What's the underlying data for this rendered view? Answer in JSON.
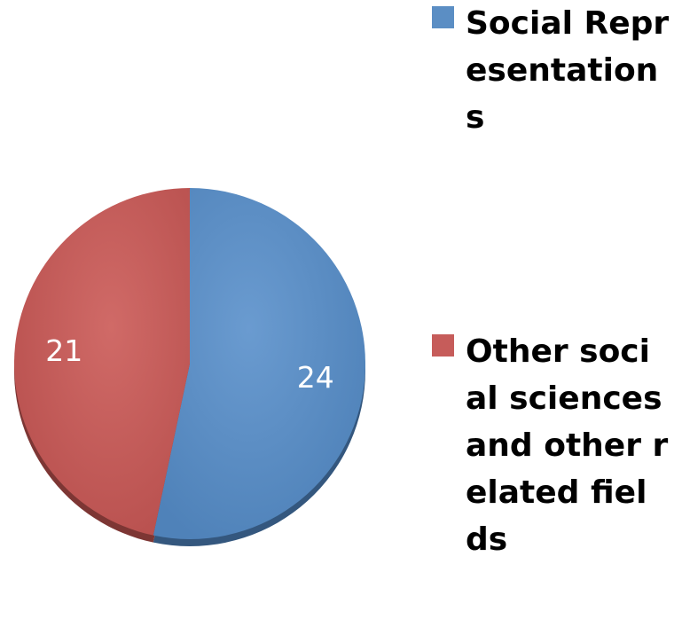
{
  "chart_data": {
    "type": "pie",
    "slices": [
      {
        "label": "Social Representations",
        "value": 24,
        "color": "#5b8ec4"
      },
      {
        "label": "Other social sciences and other related fields",
        "value": 21,
        "color": "#c65c5a"
      }
    ],
    "legend_position": "right",
    "data_labels": true
  }
}
